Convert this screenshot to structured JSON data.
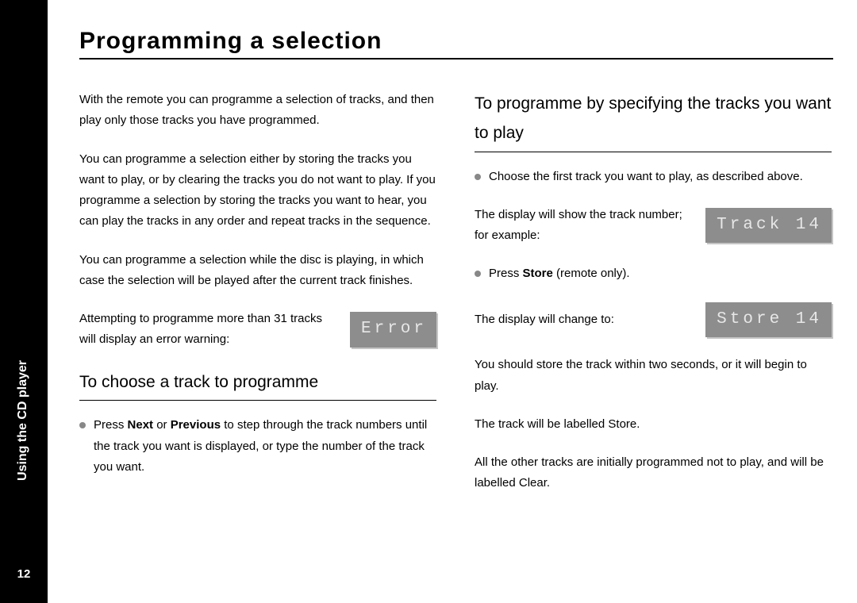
{
  "sidebar": {
    "page_number": "12",
    "section_label": "Using the CD player"
  },
  "title": "Programming a selection",
  "left_column": {
    "intro": "With the remote you can programme a selection of tracks, and then play only those tracks you have programmed.",
    "p2": "You can programme a selection either by storing the tracks you want to play, or by clearing the tracks you do not want to play. If you programme a selection by storing the tracks you want to hear, you can play the tracks in any order and repeat tracks in the sequence.",
    "p3": "You can programme a selection while the disc is playing, in which case the selection will be played after the current track finishes.",
    "error_row_text": "Attempting to programme more than 31 tracks will display an error warning:",
    "error_display": "Error",
    "sub_heading": "To choose a track to programme",
    "bullet_prefix": "Press ",
    "bullet_bold1": "Next",
    "bullet_mid": " or ",
    "bullet_bold2": "Previous",
    "bullet_suffix": " to step through the track numbers until the track you want is displayed, or type the number of the track you want."
  },
  "right_column": {
    "sub_heading": "To programme by specifying the tracks you want to play",
    "bullet1": "Choose the first track you want to play, as described above.",
    "track_row_text": "The display will show the track number; for example:",
    "track_display": "Track 14",
    "bullet2_prefix": "Press ",
    "bullet2_bold": "Store",
    "bullet2_suffix": " (remote only).",
    "store_row_text": "The display will change to:",
    "store_display": "Store 14",
    "p_after": "You should store the track within two seconds, or it will begin to play.",
    "p_label": "The track will be labelled Store.",
    "p_final": "All the other tracks are initially programmed not to play, and will be labelled Clear."
  },
  "colors": {
    "sidebar_bg": "#000000",
    "sidebar_text": "#ffffff",
    "body_text": "#000000",
    "display_bg": "#8d8d8d",
    "display_text": "#e7e7e7",
    "display_shadow": "#c5c5c5",
    "bullet_color": "#888888"
  },
  "fonts": {
    "body": "Arial",
    "display": "Courier New",
    "title_size_pt": 30,
    "subheading_size_pt": 21,
    "body_size_pt": 15,
    "display_size_pt": 21
  }
}
